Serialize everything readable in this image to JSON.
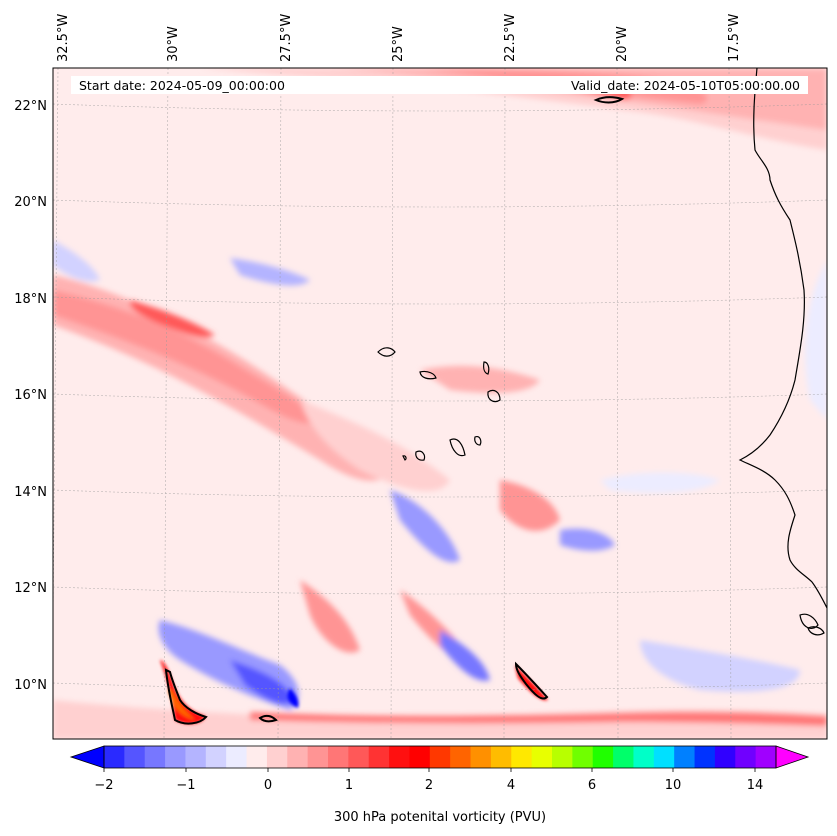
{
  "header": {
    "start_date": "Start date: 2024-05-09_00:00:00",
    "valid_date": "Valid_date: 2024-05-10T05:00:00.00"
  },
  "map": {
    "lon_labels": [
      "32.5°W",
      "30°W",
      "27.5°W",
      "25°W",
      "22.5°W",
      "20°W",
      "17.5°W"
    ],
    "lat_labels": [
      "22°N",
      "20°N",
      "18°N",
      "16°N",
      "14°N",
      "12°N",
      "10°N"
    ],
    "lon_range": [
      -32.5,
      -15.25
    ],
    "lat_range": [
      8.9,
      22.8
    ],
    "gridlines": true
  },
  "colorbar": {
    "tick_labels": [
      "−2",
      "−1",
      "0",
      "1",
      "2",
      "4",
      "6",
      "10",
      "14"
    ],
    "label": "300 hPa potenital vorticity (PVU)",
    "colors": [
      "#0000ff",
      "#2a2aff",
      "#5555ff",
      "#7777ff",
      "#9999ff",
      "#b4b4ff",
      "#d2d2ff",
      "#ececff",
      "#ffecec",
      "#ffd0d0",
      "#ffb2b2",
      "#ff9494",
      "#ff7676",
      "#ff5858",
      "#ff3333",
      "#ff1010",
      "#ff0000",
      "#ff3800",
      "#ff6400",
      "#ff9000",
      "#ffbc00",
      "#ffe800",
      "#e8ff00",
      "#b8ff00",
      "#70ff00",
      "#20ff00",
      "#00ff6a",
      "#00ffc8",
      "#00e0ff",
      "#0080ff",
      "#0033ff",
      "#3000ff",
      "#7000ff",
      "#a000ff",
      "#d000ff"
    ]
  }
}
